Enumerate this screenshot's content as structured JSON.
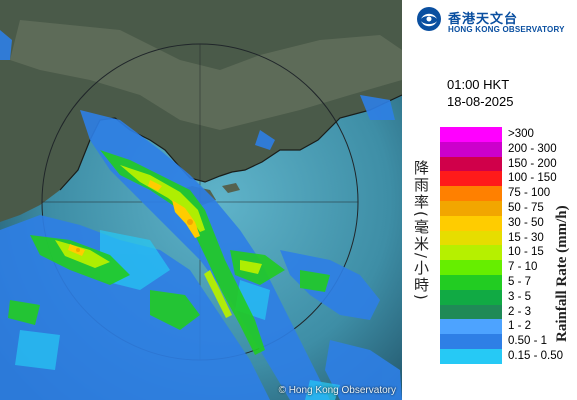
{
  "header": {
    "logo_zh": "香港天文台",
    "logo_en": "HONG KONG OBSERVATORY",
    "logo_icon": "hko-logo-icon"
  },
  "timestamp": {
    "time": "01:00 HKT",
    "date": "18-08-2025"
  },
  "legend": {
    "title_zh": "降雨率(毫米/小時)",
    "title_en": "Rainfall Rate (mm/h)",
    "items": [
      {
        "label": ">300",
        "color": "#ff00ff"
      },
      {
        "label": "200 - 300",
        "color": "#cc00cc"
      },
      {
        "label": "150 - 200",
        "color": "#d0004a"
      },
      {
        "label": "100 - 150",
        "color": "#ff1a1a"
      },
      {
        "label": "75 - 100",
        "color": "#ff8000"
      },
      {
        "label": "50 - 75",
        "color": "#f2a600"
      },
      {
        "label": "30 - 50",
        "color": "#ffcc00"
      },
      {
        "label": "15 - 30",
        "color": "#e6dd00"
      },
      {
        "label": "10 - 15",
        "color": "#b6f000"
      },
      {
        "label": "7 - 10",
        "color": "#66ee00"
      },
      {
        "label": "5 - 7",
        "color": "#22cc22"
      },
      {
        "label": "3 - 5",
        "color": "#11aa44"
      },
      {
        "label": "2 - 3",
        "color": "#1f8a57"
      },
      {
        "label": "1 - 2",
        "color": "#4da3ff"
      },
      {
        "label": "0.50 - 1",
        "color": "#2e7fe6"
      },
      {
        "label": "0.15 - 0.50",
        "color": "#26c9f5"
      }
    ]
  },
  "map": {
    "copyright": "© Hong Kong Observatory"
  }
}
